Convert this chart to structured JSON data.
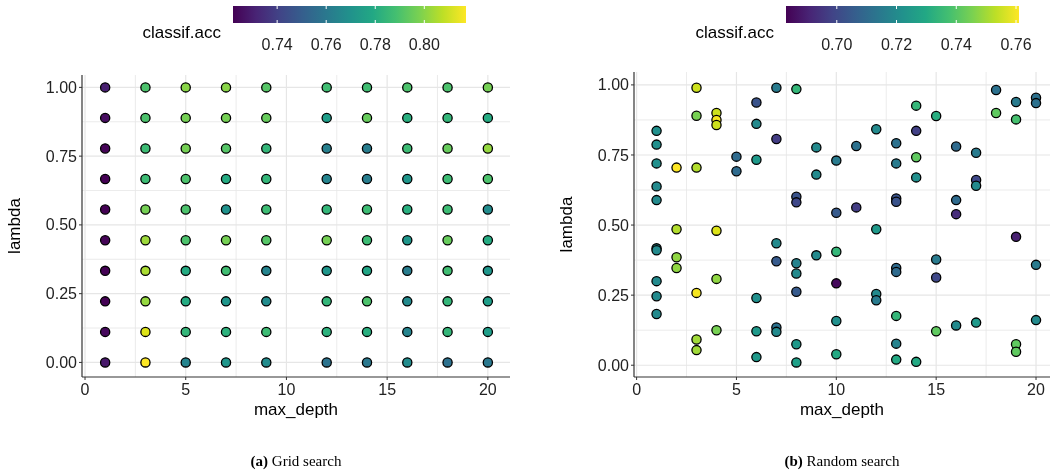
{
  "chart_data": [
    {
      "type": "scatter",
      "title": "(a) Grid search",
      "xlabel": "max_depth",
      "ylabel": "lambda",
      "clabel": "classif.acc",
      "clim": [
        0.722,
        0.817
      ],
      "cticks": [
        0.74,
        0.76,
        0.78,
        {
          "value": 0.8,
          "label": "0.80"
        }
      ],
      "xlim": [
        -0.15,
        21.1
      ],
      "ylim": [
        -0.053,
        1.045
      ],
      "xticks": [
        0,
        {
          "value": 2.5,
          "label": null
        },
        5,
        {
          "value": 7.5,
          "label": null
        },
        10,
        {
          "value": 12.5,
          "label": null
        },
        15,
        {
          "value": 17.5,
          "label": null
        },
        20
      ],
      "yticks": [
        {
          "value": 0,
          "label": "0.00"
        },
        {
          "value": 0.125,
          "label": null
        },
        {
          "value": 0.25,
          "label": "0.25"
        },
        {
          "value": 0.375,
          "label": null
        },
        {
          "value": 0.5,
          "label": "0.50"
        },
        {
          "value": 0.625,
          "label": null
        },
        {
          "value": 0.75,
          "label": "0.75"
        },
        {
          "value": 0.875,
          "label": null
        },
        {
          "value": 1,
          "label": "1.00"
        }
      ],
      "grid": true,
      "marker": "circle",
      "series": [
        {
          "x": [
            1,
            1,
            1,
            1,
            1,
            1,
            1,
            1,
            1,
            1,
            3,
            3,
            3,
            3,
            3,
            3,
            3,
            3,
            3,
            3,
            5,
            5,
            5,
            5,
            5,
            5,
            5,
            5,
            5,
            5,
            7,
            7,
            7,
            7,
            7,
            7,
            7,
            7,
            7,
            7,
            9,
            9,
            9,
            9,
            9,
            9,
            9,
            9,
            9,
            9,
            12,
            12,
            12,
            12,
            12,
            12,
            12,
            12,
            12,
            12,
            14,
            14,
            14,
            14,
            14,
            14,
            14,
            14,
            14,
            14,
            16,
            16,
            16,
            16,
            16,
            16,
            16,
            16,
            16,
            16,
            18,
            18,
            18,
            18,
            18,
            18,
            18,
            18,
            18,
            18,
            20,
            20,
            20,
            20,
            20,
            20,
            20,
            20,
            20,
            20
          ],
          "values": [
            1,
            0.889,
            0.778,
            0.667,
            0.556,
            0.444,
            0.333,
            0.222,
            0.111,
            0,
            1,
            0.889,
            0.778,
            0.667,
            0.556,
            0.444,
            0.333,
            0.222,
            0.111,
            0,
            1,
            0.889,
            0.778,
            0.667,
            0.556,
            0.444,
            0.333,
            0.222,
            0.111,
            0,
            1,
            0.889,
            0.778,
            0.667,
            0.556,
            0.444,
            0.333,
            0.222,
            0.111,
            0,
            1,
            0.889,
            0.778,
            0.667,
            0.556,
            0.444,
            0.333,
            0.222,
            0.111,
            0,
            1,
            0.889,
            0.778,
            0.667,
            0.556,
            0.444,
            0.333,
            0.222,
            0.111,
            0,
            1,
            0.889,
            0.778,
            0.667,
            0.556,
            0.444,
            0.333,
            0.222,
            0.111,
            0,
            1,
            0.889,
            0.778,
            0.667,
            0.556,
            0.444,
            0.333,
            0.222,
            0.111,
            0,
            1,
            0.889,
            0.778,
            0.667,
            0.556,
            0.444,
            0.333,
            0.222,
            0.111,
            0,
            1,
            0.889,
            0.778,
            0.667,
            0.556,
            0.444,
            0.333,
            0.222,
            0.111,
            0
          ],
          "cvalues": [
            0.73,
            0.725,
            0.723,
            0.722,
            0.722,
            0.723,
            0.722,
            0.722,
            0.724,
            0.728,
            0.79,
            0.79,
            0.787,
            0.787,
            0.797,
            0.803,
            0.805,
            0.802,
            0.812,
            0.817,
            0.8,
            0.797,
            0.797,
            0.79,
            0.79,
            0.79,
            0.78,
            0.78,
            0.785,
            0.765,
            0.8,
            0.797,
            0.792,
            0.78,
            0.77,
            0.797,
            0.788,
            0.772,
            0.783,
            0.772,
            0.792,
            0.795,
            0.785,
            0.785,
            0.787,
            0.792,
            0.765,
            0.768,
            0.787,
            0.768,
            0.788,
            0.775,
            0.763,
            0.765,
            0.785,
            0.797,
            0.772,
            0.785,
            0.783,
            0.758,
            0.788,
            0.795,
            0.762,
            0.762,
            0.787,
            0.787,
            0.778,
            0.79,
            0.782,
            0.76,
            0.79,
            0.782,
            0.787,
            0.772,
            0.782,
            0.772,
            0.762,
            0.767,
            0.765,
            0.768,
            0.79,
            0.785,
            0.795,
            0.787,
            0.787,
            0.795,
            0.788,
            0.785,
            0.785,
            0.757,
            0.797,
            0.78,
            0.802,
            0.79,
            0.768,
            0.78,
            0.772,
            0.775,
            0.775,
            0.76
          ]
        }
      ]
    },
    {
      "type": "scatter",
      "title": "(b) Random search",
      "xlabel": "max_depth",
      "ylabel": "lambda",
      "clabel": "classif.acc",
      "clim": [
        0.683,
        0.761
      ],
      "cticks": [
        {
          "value": 0.7,
          "label": "0.70"
        },
        0.72,
        0.74,
        0.76
      ],
      "xlim": [
        -0.13,
        20.7
      ],
      "ylim": [
        -0.042,
        1.046
      ],
      "xticks": [
        0,
        {
          "value": 2.5,
          "label": null
        },
        5,
        {
          "value": 7.5,
          "label": null
        },
        10,
        {
          "value": 12.5,
          "label": null
        },
        15,
        {
          "value": 17.5,
          "label": null
        },
        20
      ],
      "yticks": [
        {
          "value": 0,
          "label": "0.00"
        },
        {
          "value": 0.125,
          "label": null
        },
        {
          "value": 0.25,
          "label": "0.25"
        },
        {
          "value": 0.375,
          "label": null
        },
        {
          "value": 0.5,
          "label": "0.50"
        },
        {
          "value": 0.625,
          "label": null
        },
        {
          "value": 0.75,
          "label": "0.75"
        },
        {
          "value": 0.875,
          "label": null
        },
        {
          "value": 1,
          "label": "1.00"
        }
      ],
      "grid": true,
      "marker": "circle",
      "series": [
        {
          "x": [
            3,
            3,
            4,
            4,
            4,
            6,
            6,
            7,
            8,
            7,
            9,
            10,
            1,
            1,
            1,
            1,
            1,
            1,
            1,
            1,
            1,
            1,
            2,
            3,
            5,
            5,
            6,
            9,
            8,
            8,
            10,
            2,
            4,
            7,
            7,
            8,
            8,
            9,
            10,
            10,
            2,
            2,
            4,
            3,
            6,
            8,
            4,
            3,
            3,
            6,
            7,
            7,
            8,
            8,
            6,
            10,
            10,
            11,
            11,
            12,
            12,
            12,
            12,
            13,
            13,
            13,
            13,
            13,
            13,
            13,
            13,
            13,
            14,
            14,
            14,
            14,
            14,
            15,
            15,
            15,
            15,
            16,
            16,
            16,
            16,
            17,
            17,
            17,
            17,
            18,
            18,
            19,
            19,
            19,
            19,
            19,
            20,
            20,
            20,
            20
          ],
          "values": [
            0.99,
            0.89,
            0.9,
            0.875,
            0.857,
            0.937,
            0.861,
            0.99,
            0.985,
            0.807,
            0.777,
            0.73,
            0.836,
            0.787,
            0.72,
            0.638,
            0.589,
            0.417,
            0.41,
            0.3,
            0.246,
            0.183,
            0.705,
            0.705,
            0.744,
            0.692,
            0.733,
            0.68,
            0.601,
            0.581,
            0.544,
            0.485,
            0.48,
            0.435,
            0.371,
            0.364,
            0.327,
            0.392,
            0.405,
            0.292,
            0.385,
            0.347,
            0.308,
            0.258,
            0.24,
            0.262,
            0.125,
            0.092,
            0.054,
            0.121,
            0.135,
            0.119,
            0.075,
            0.01,
            0.029,
            0.158,
            0.039,
            0.782,
            0.563,
            0.842,
            0.485,
            0.254,
            0.232,
            0.792,
            0.72,
            0.595,
            0.583,
            0.347,
            0.333,
            0.176,
            0.077,
            0.02,
            0.926,
            0.836,
            0.742,
            0.67,
            0.012,
            0.889,
            0.377,
            0.313,
            0.121,
            0.78,
            0.589,
            0.539,
            0.142,
            0.758,
            0.661,
            0.64,
            0.152,
            0.982,
            0.9,
            0.939,
            0.877,
            0.458,
            0.075,
            0.048,
            0.954,
            0.935,
            0.358,
            0.161
          ],
          "cvalues": [
            0.755,
            0.745,
            0.755,
            0.76,
            0.755,
            0.703,
            0.72,
            0.715,
            0.735,
            0.697,
            0.72,
            0.715,
            0.722,
            0.722,
            0.722,
            0.72,
            0.72,
            0.72,
            0.72,
            0.72,
            0.72,
            0.72,
            0.761,
            0.752,
            0.71,
            0.71,
            0.725,
            0.72,
            0.703,
            0.7,
            0.705,
            0.752,
            0.757,
            0.72,
            0.705,
            0.718,
            0.72,
            0.72,
            0.735,
            0.685,
            0.748,
            0.748,
            0.748,
            0.76,
            0.722,
            0.705,
            0.745,
            0.75,
            0.75,
            0.725,
            0.712,
            0.72,
            0.725,
            0.727,
            0.725,
            0.722,
            0.73,
            0.712,
            0.697,
            0.72,
            0.725,
            0.72,
            0.715,
            0.712,
            0.715,
            0.703,
            0.703,
            0.71,
            0.71,
            0.735,
            0.718,
            0.73,
            0.735,
            0.698,
            0.742,
            0.722,
            0.73,
            0.732,
            0.715,
            0.7,
            0.742,
            0.71,
            0.71,
            0.693,
            0.72,
            0.715,
            0.7,
            0.72,
            0.725,
            0.712,
            0.742,
            0.715,
            0.738,
            0.69,
            0.742,
            0.742,
            0.712,
            0.712,
            0.715,
            0.72
          ]
        }
      ]
    }
  ]
}
